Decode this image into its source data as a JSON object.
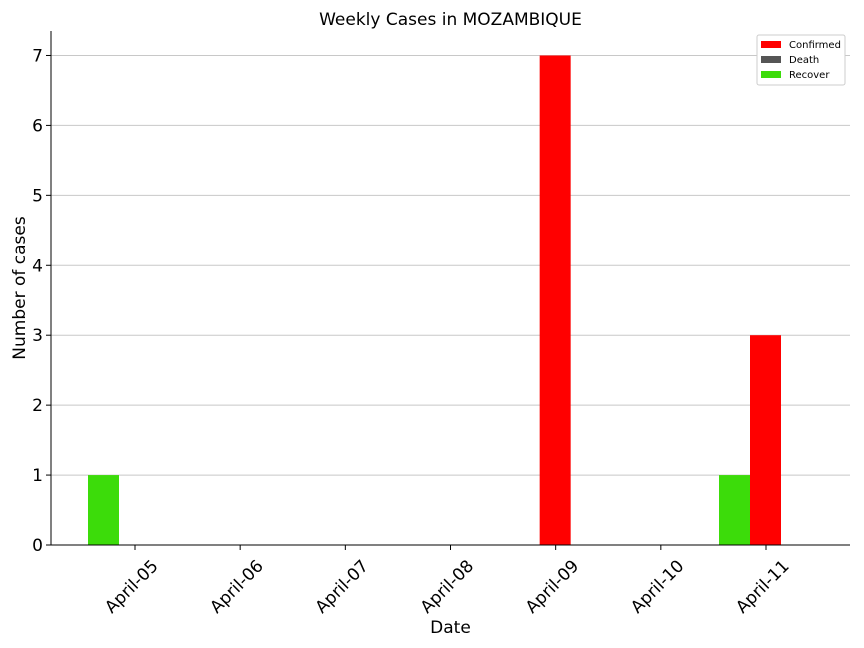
{
  "chart_data": {
    "type": "bar",
    "title": "Weekly Cases in MOZAMBIQUE",
    "xlabel": "Date",
    "ylabel": "Number of cases",
    "categories": [
      "April-05",
      "April-06",
      "April-07",
      "April-08",
      "April-09",
      "April-10",
      "April-11"
    ],
    "series": [
      {
        "name": "Confirmed",
        "color": "#ff0000",
        "values": [
          0,
          0,
          0,
          0,
          7,
          0,
          3
        ]
      },
      {
        "name": "Death",
        "color": "#555555",
        "values": [
          0,
          0,
          0,
          0,
          0,
          0,
          0
        ]
      },
      {
        "name": "Recover",
        "color": "#3cdc0a",
        "values": [
          1,
          0,
          0,
          0,
          0,
          0,
          1
        ]
      }
    ],
    "ylim": [
      0,
      7.35
    ],
    "yticks": [
      0,
      1,
      2,
      3,
      4,
      5,
      6,
      7
    ],
    "grid": "horizontal",
    "legend_position": "top-right"
  }
}
